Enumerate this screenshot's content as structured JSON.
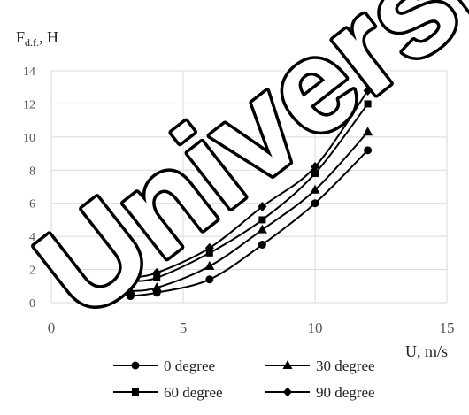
{
  "chart_data": {
    "type": "line",
    "ylabel_main": "F",
    "ylabel_sub": "d.f.",
    "ylabel_unit": ", H",
    "xlabel": "U, m/s",
    "xlim": [
      0,
      15
    ],
    "ylim": [
      0,
      14
    ],
    "x_ticks": [
      "0",
      "5",
      "10",
      "15"
    ],
    "y_ticks": [
      "0",
      "2",
      "4",
      "6",
      "8",
      "10",
      "12",
      "14"
    ],
    "grid": true,
    "legend_position": "bottom",
    "x": [
      3,
      4,
      6,
      8,
      10,
      12
    ],
    "series": [
      {
        "name": "0 degree",
        "marker": "circle",
        "values": [
          0.4,
          0.6,
          1.4,
          3.5,
          6.0,
          9.2
        ]
      },
      {
        "name": "30 degree",
        "marker": "triangle",
        "values": [
          0.7,
          0.9,
          2.2,
          4.4,
          6.8,
          10.3
        ]
      },
      {
        "name": "60 degree",
        "marker": "square",
        "values": [
          1.3,
          1.5,
          3.0,
          5.0,
          7.8,
          12.0
        ]
      },
      {
        "name": "90 degree",
        "marker": "diamond",
        "values": [
          1.5,
          1.8,
          3.3,
          5.8,
          8.2,
          12.8
        ]
      }
    ]
  },
  "watermark": "University"
}
